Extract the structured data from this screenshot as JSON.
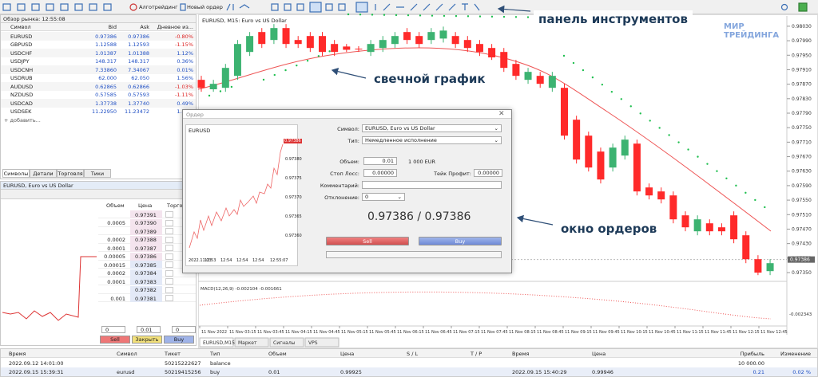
{
  "toolbar": {
    "algo": "Алготрейдинг",
    "new_order": "Новый ордер"
  },
  "market_watch": {
    "title": "Обзор рынка: 12:55:08",
    "columns": [
      "Символ",
      "Bid",
      "Ask",
      "Дневное из..."
    ],
    "rows": [
      [
        "EURUSD",
        "0.97386",
        "0.97386",
        "-0.80%"
      ],
      [
        "GBPUSD",
        "1.12588",
        "1.12593",
        "-1.15%"
      ],
      [
        "USDCHF",
        "1.01387",
        "1.01388",
        "1.12%"
      ],
      [
        "USDJPY",
        "148.317",
        "148.317",
        "0.36%"
      ],
      [
        "USDCNH",
        "7.33860",
        "7.34067",
        "0.01%"
      ],
      [
        "USDRUB",
        "62.000",
        "62.050",
        "1.56%"
      ],
      [
        "AUDUSD",
        "0.62865",
        "0.62866",
        "-1.03%"
      ],
      [
        "NZDUSD",
        "0.57585",
        "0.57593",
        "-1.11%"
      ],
      [
        "USDCAD",
        "1.37738",
        "1.37740",
        "0.49%"
      ],
      [
        "USDSEK",
        "11.22950",
        "11.23472",
        "1.47%"
      ]
    ],
    "add": "+ добавить...",
    "tabs": [
      "Символы",
      "Детали",
      "Торговля",
      "Тики"
    ]
  },
  "depth": {
    "title": "EURUSD, Euro vs US Dollar",
    "columns": [
      "Объем",
      "Цена",
      "Торго"
    ],
    "rows": [
      [
        null,
        "0.97391"
      ],
      [
        "0.0005",
        "0.97390"
      ],
      [
        null,
        "0.97389"
      ],
      [
        "0.0002",
        "0.97388"
      ],
      [
        "0.0001",
        "0.97387"
      ],
      [
        "0.00005",
        "0.97386"
      ],
      [
        "0.00015",
        "0.97385"
      ],
      [
        "0.0002",
        "0.97384"
      ],
      [
        "0.0001",
        "0.97383"
      ],
      [
        null,
        "0.97382"
      ],
      [
        "0.001",
        "0.97381"
      ]
    ],
    "volume": "0",
    "lot": "0.01",
    "slippage": "0",
    "buttons": [
      "Sell",
      "Закрыть",
      "Buy"
    ]
  },
  "chart": {
    "title": "EURUSD, M15: Euro vs US Dollar",
    "ylim": [
      0.97328,
      0.98054
    ],
    "yticks": [
      {
        "value": 0.9803,
        "label": "0.98030"
      },
      {
        "value": 0.9799,
        "label": "0.97990"
      },
      {
        "value": 0.9795,
        "label": "0.97950"
      },
      {
        "value": 0.9791,
        "label": "0.97910"
      },
      {
        "value": 0.9787,
        "label": "0.97870"
      },
      {
        "value": 0.9783,
        "label": "0.97830"
      },
      {
        "value": 0.9779,
        "label": "0.97790"
      },
      {
        "value": 0.9775,
        "label": "0.97750"
      },
      {
        "value": 0.9771,
        "label": "0.97710"
      },
      {
        "value": 0.9767,
        "label": "0.97670"
      },
      {
        "value": 0.9763,
        "label": "0.97630"
      },
      {
        "value": 0.9759,
        "label": "0.97590"
      },
      {
        "value": 0.9755,
        "label": "0.97550"
      },
      {
        "value": 0.9751,
        "label": "0.97510"
      },
      {
        "value": 0.9747,
        "label": "0.97470"
      },
      {
        "value": 0.9743,
        "label": "0.97430"
      },
      {
        "value": 0.9739,
        "label": "0.97390"
      },
      {
        "value": 0.9735,
        "label": "0.97350"
      }
    ],
    "current_price": {
      "value": 0.97386,
      "label": "0.97386"
    },
    "candles": [
      [
        0.97882,
        0.97893,
        0.97849,
        0.9786
      ],
      [
        0.97856,
        0.97882,
        0.97849,
        0.97871
      ],
      [
        0.9786,
        0.97926,
        0.97849,
        0.97915
      ],
      [
        0.97893,
        0.97992,
        0.97882,
        0.97981
      ],
      [
        0.97959,
        0.98014,
        0.97948,
        0.98003
      ],
      [
        0.98014,
        0.98025,
        0.9797,
        0.97981
      ],
      [
        0.97992,
        0.98036,
        0.97981,
        0.98025
      ],
      [
        0.98025,
        0.98036,
        0.9797,
        0.97981
      ],
      [
        0.97992,
        0.98003,
        0.9797,
        0.97981
      ],
      [
        0.98003,
        0.98014,
        0.97959,
        0.9797
      ],
      [
        0.98003,
        0.98014,
        0.97948,
        0.97959
      ],
      [
        0.97981,
        0.97992,
        0.97948,
        0.97959
      ],
      [
        0.97974,
        0.97981,
        0.97959,
        0.97965
      ],
      [
        0.97968,
        0.97975,
        0.97959,
        0.97966
      ],
      [
        0.97959,
        0.97992,
        0.97948,
        0.97981
      ],
      [
        0.9797,
        0.98003,
        0.97959,
        0.97992
      ],
      [
        0.97981,
        0.98014,
        0.9797,
        0.98003
      ],
      [
        0.98014,
        0.98025,
        0.97981,
        0.97992
      ],
      [
        0.98003,
        0.98014,
        0.9797,
        0.97981
      ],
      [
        0.97992,
        0.98025,
        0.97981,
        0.98014
      ],
      [
        0.97996,
        0.98029,
        0.97985,
        0.98018
      ],
      [
        0.98003,
        0.98014,
        0.9797,
        0.97981
      ],
      [
        0.97992,
        0.98003,
        0.97959,
        0.9797
      ],
      [
        0.97981,
        0.97992,
        0.97948,
        0.97959
      ],
      [
        0.9797,
        0.97981,
        0.97937,
        0.97944
      ],
      [
        0.97959,
        0.9797,
        0.97904,
        0.97915
      ],
      [
        0.97926,
        0.97937,
        0.97882,
        0.97893
      ],
      [
        0.97882,
        0.97915,
        0.97871,
        0.97904
      ],
      [
        0.97893,
        0.97904,
        0.9786,
        0.97871
      ],
      [
        0.9786,
        0.97904,
        0.97849,
        0.97893
      ],
      [
        0.9786,
        0.97871,
        0.97717,
        0.97728
      ],
      [
        0.97772,
        0.97783,
        0.97651,
        0.97662
      ],
      [
        0.97728,
        0.97739,
        0.97629,
        0.9764
      ],
      [
        0.97684,
        0.97695,
        0.97596,
        0.97607
      ],
      [
        0.9764,
        0.97706,
        0.97629,
        0.97695
      ],
      [
        0.97673,
        0.97728,
        0.97662,
        0.97717
      ],
      [
        0.97706,
        0.97717,
        0.97563,
        0.97574
      ],
      [
        0.97585,
        0.97596,
        0.97552,
        0.97563
      ],
      [
        0.97574,
        0.97585,
        0.97541,
        0.97552
      ],
      [
        0.97563,
        0.97574,
        0.97486,
        0.97497
      ],
      [
        0.97508,
        0.97519,
        0.97464,
        0.97475
      ],
      [
        0.97464,
        0.97508,
        0.97453,
        0.97497
      ],
      [
        0.97486,
        0.97497,
        0.97453,
        0.97464
      ],
      [
        0.97475,
        0.97486,
        0.97453,
        0.97464
      ],
      [
        0.97508,
        0.97519,
        0.97431,
        0.97442
      ],
      [
        0.97453,
        0.97464,
        0.97376,
        0.97387
      ],
      [
        0.97387,
        0.97398,
        0.97343,
        0.9735
      ],
      [
        0.97354,
        0.97387,
        0.97343,
        0.97376
      ]
    ],
    "macd_label": "MACD(12,26,9) -0.002104 -0.001661",
    "macd_tick": "-0.002343",
    "time_labels": [
      "11 Nov 2022",
      "11 Nov 03:15",
      "11 Nov 03:45",
      "11 Nov 04:15",
      "11 Nov 04:45",
      "11 Nov 05:15",
      "11 Nov 05:45",
      "11 Nov 06:15",
      "11 Nov 06:45",
      "11 Nov 07:15",
      "11 Nov 07:45",
      "11 Nov 08:15",
      "11 Nov 08:45",
      "11 Nov 09:15",
      "11 Nov 09:45",
      "11 Nov 10:15",
      "11 Nov 10:45",
      "11 Nov 11:15",
      "11 Nov 11:45",
      "11 Nov 12:15",
      "11 Nov 12:45"
    ],
    "tabs": [
      "EURUSD,M15",
      "Маркет",
      "Сигналы",
      "VPS"
    ]
  },
  "order": {
    "title": "Ордер",
    "mini_chart": {
      "symbol": "EURUSD",
      "yticks": [
        "0.97380",
        "0.97375",
        "0.97370",
        "0.97365",
        "0.97360"
      ],
      "current": "0.97386",
      "time_labels": [
        "2022.11.03",
        "12:53",
        "12:54",
        "12:54",
        "12:54",
        "12:55:07"
      ]
    },
    "symbol_label": "Символ:",
    "symbol": "EURUSD, Euro vs US Dollar",
    "type_label": "Тип:",
    "type": "Немедленное исполнение",
    "volume_label": "Объем:",
    "volume": "0.01",
    "volume_note": "1 000 EUR",
    "sl_label": "Стоп Лосс:",
    "sl": "0.00000",
    "tp_label": "Тейк Профит:",
    "tp": "0.00000",
    "comment_label": "Комментарий:",
    "deviation_label": "Отклонение:",
    "deviation": "0",
    "price": "0.97386 / 0.97386",
    "sell": "Sell",
    "buy": "Buy"
  },
  "history": {
    "columns": [
      "Время",
      "Символ",
      "Тикет",
      "Тип",
      "Объем",
      "Цена",
      "S / L",
      "T / P",
      "Время",
      "Цена",
      "Прибыль",
      "Изменение"
    ],
    "rows": [
      [
        "2022.09.12 14:01:00",
        null,
        "50215222627",
        "balance",
        null,
        null,
        null,
        null,
        null,
        null,
        "10 000.00",
        null
      ],
      [
        "2022.09.15 15:39:31",
        "eurusd",
        "50219415256",
        "buy",
        "0.01",
        "0.99925",
        null,
        null,
        "2022.09.15 15:40:29",
        "0.99946",
        "0.21",
        "0.02 %"
      ]
    ]
  },
  "annotations": {
    "toolbar": "панель инструментов",
    "chart": "свечной график",
    "order": "окно ордеров"
  },
  "logo": [
    "МИР",
    "ТРЕЙДИНГА"
  ]
}
